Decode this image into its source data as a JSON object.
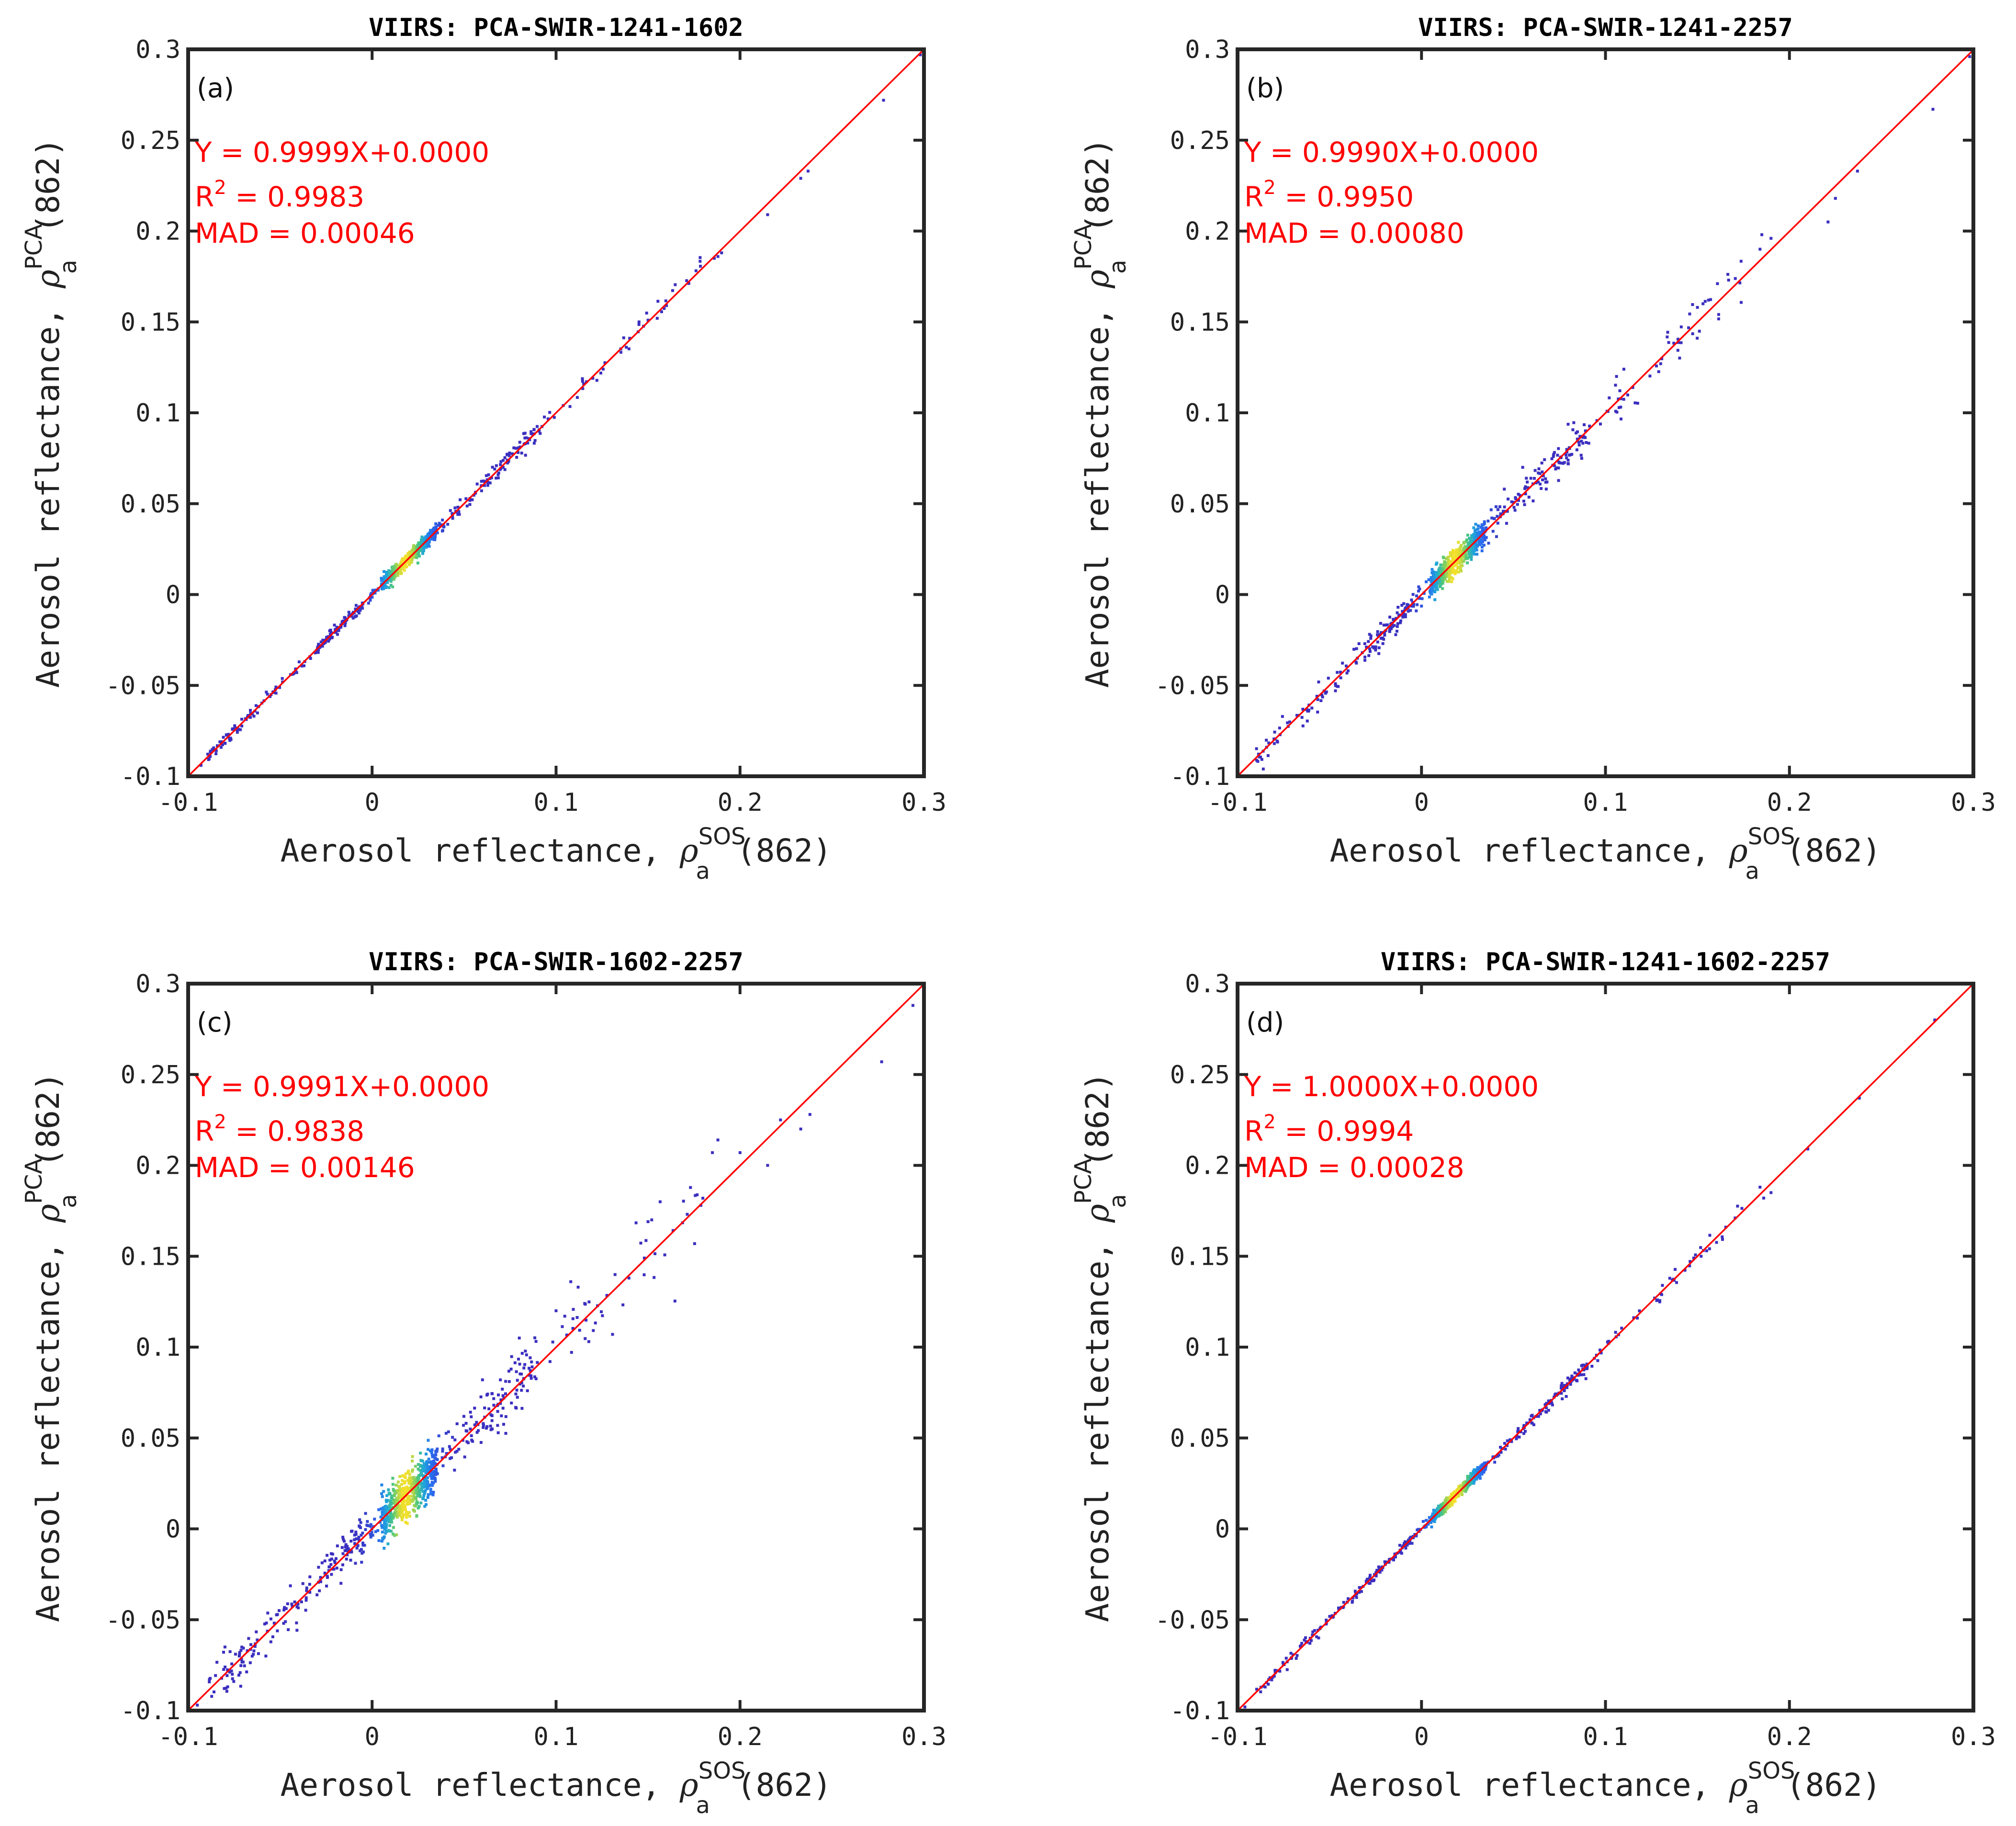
{
  "chart_data": [
    {
      "type": "scatter",
      "panel_label": "(a)",
      "title": "VIIRS: PCA-SWIR-1241-1602",
      "xlabel": "Aerosol reflectance, ",
      "xlabel_symbol": "ρ",
      "xlabel_sub": "a",
      "xlabel_sup": "SOS",
      "xlabel_suffix": "(862)",
      "ylabel": "Aerosol reflectance, ",
      "ylabel_symbol": "ρ",
      "ylabel_sub": "a",
      "ylabel_sup": "PCA",
      "ylabel_suffix": "(862)",
      "xlim": [
        -0.1,
        0.3
      ],
      "ylim": [
        -0.1,
        0.3
      ],
      "xticks": [
        -0.1,
        0,
        0.1,
        0.2,
        0.3
      ],
      "xtick_labels": [
        "-0.1",
        "0",
        "0.1",
        "0.2",
        "0.3"
      ],
      "yticks": [
        -0.1,
        -0.05,
        0,
        0.05,
        0.1,
        0.15,
        0.2,
        0.25,
        0.3
      ],
      "ytick_labels": [
        "-0.1",
        "-0.05",
        "0",
        "0.05",
        "0.1",
        "0.15",
        "0.2",
        "0.25",
        "0.3"
      ],
      "fit": {
        "slope": 0.9999,
        "intercept": 0.0
      },
      "stats": {
        "equation": "Y = 0.9999X+0.0000",
        "r2_label": "R",
        "r2_sup": "2",
        "r2_value": " = 0.9983",
        "mad": "MAD = 0.00046"
      },
      "scatter": {
        "spread": 0.0018,
        "outliers": [
          [
            0.278,
            0.272
          ],
          [
            0.237,
            0.233
          ],
          [
            0.233,
            0.229
          ],
          [
            0.215,
            0.209
          ],
          [
            0.19,
            0.188
          ],
          [
            0.188,
            0.186
          ],
          [
            0.186,
            0.185
          ],
          [
            0.16,
            0.159
          ],
          [
            0.155,
            0.152
          ],
          [
            0.15,
            0.151
          ],
          [
            0.14,
            0.141
          ],
          [
            0.12,
            0.119
          ],
          [
            0.115,
            0.116
          ],
          [
            -0.077,
            -0.079
          ],
          [
            -0.082,
            -0.081
          ],
          [
            -0.088,
            -0.089
          ],
          [
            -0.093,
            -0.094
          ],
          [
            0.298,
            0.297
          ]
        ]
      }
    },
    {
      "type": "scatter",
      "panel_label": "(b)",
      "title": "VIIRS: PCA-SWIR-1241-2257",
      "xlabel": "Aerosol reflectance, ",
      "xlabel_symbol": "ρ",
      "xlabel_sub": "a",
      "xlabel_sup": "SOS",
      "xlabel_suffix": "(862)",
      "ylabel": "Aerosol reflectance, ",
      "ylabel_symbol": "ρ",
      "ylabel_sub": "a",
      "ylabel_sup": "PCA",
      "ylabel_suffix": "(862)",
      "xlim": [
        -0.1,
        0.3
      ],
      "ylim": [
        -0.1,
        0.3
      ],
      "xticks": [
        -0.1,
        0,
        0.1,
        0.2,
        0.3
      ],
      "xtick_labels": [
        "-0.1",
        "0",
        "0.1",
        "0.2",
        "0.3"
      ],
      "yticks": [
        -0.1,
        -0.05,
        0,
        0.05,
        0.1,
        0.15,
        0.2,
        0.25,
        0.3
      ],
      "ytick_labels": [
        "-0.1",
        "-0.05",
        "0",
        "0.05",
        "0.1",
        "0.15",
        "0.2",
        "0.25",
        "0.3"
      ],
      "fit": {
        "slope": 0.999,
        "intercept": 0.0
      },
      "stats": {
        "equation": "Y = 0.9990X+0.0000",
        "r2_label": "R",
        "r2_sup": "2",
        "r2_value": " = 0.9950",
        "mad": "MAD = 0.00080"
      },
      "scatter": {
        "spread": 0.0035,
        "outliers": [
          [
            0.278,
            0.267
          ],
          [
            0.237,
            0.233
          ],
          [
            0.225,
            0.218
          ],
          [
            0.221,
            0.205
          ],
          [
            0.19,
            0.196
          ],
          [
            0.185,
            0.198
          ],
          [
            0.184,
            0.19
          ],
          [
            0.156,
            0.162
          ],
          [
            0.153,
            0.16
          ],
          [
            0.15,
            0.158
          ],
          [
            0.13,
            0.127
          ],
          [
            0.11,
            0.124
          ],
          [
            0.106,
            0.12
          ],
          [
            0.055,
            0.07
          ],
          [
            0.045,
            0.058
          ],
          [
            -0.08,
            -0.082
          ],
          [
            -0.086,
            -0.096
          ],
          [
            0.298,
            0.296
          ]
        ]
      }
    },
    {
      "type": "scatter",
      "panel_label": "(c)",
      "title": "VIIRS: PCA-SWIR-1602-2257",
      "xlabel": "Aerosol reflectance, ",
      "xlabel_symbol": "ρ",
      "xlabel_sub": "a",
      "xlabel_sup": "SOS",
      "xlabel_suffix": "(862)",
      "ylabel": "Aerosol reflectance, ",
      "ylabel_symbol": "ρ",
      "ylabel_sub": "a",
      "ylabel_sup": "PCA",
      "ylabel_suffix": "(862)",
      "xlim": [
        -0.1,
        0.3
      ],
      "ylim": [
        -0.1,
        0.3
      ],
      "xticks": [
        -0.1,
        0,
        0.1,
        0.2,
        0.3
      ],
      "xtick_labels": [
        "-0.1",
        "0",
        "0.1",
        "0.2",
        "0.3"
      ],
      "yticks": [
        -0.1,
        -0.05,
        0,
        0.05,
        0.1,
        0.15,
        0.2,
        0.25,
        0.3
      ],
      "ytick_labels": [
        "-0.1",
        "-0.05",
        "0",
        "0.05",
        "0.1",
        "0.15",
        "0.2",
        "0.25",
        "0.3"
      ],
      "fit": {
        "slope": 0.9991,
        "intercept": 0.0
      },
      "stats": {
        "equation": "Y = 0.9991X+0.0000",
        "r2_label": "R",
        "r2_sup": "2",
        "r2_value": " = 0.9838",
        "mad": "MAD = 0.00146"
      },
      "scatter": {
        "spread": 0.0065,
        "outliers": [
          [
            0.294,
            0.288
          ],
          [
            0.277,
            0.257
          ],
          [
            0.238,
            0.228
          ],
          [
            0.233,
            0.22
          ],
          [
            0.222,
            0.225
          ],
          [
            0.215,
            0.2
          ],
          [
            0.2,
            0.207
          ],
          [
            0.188,
            0.214
          ],
          [
            0.185,
            0.207
          ],
          [
            0.152,
            0.17
          ],
          [
            0.15,
            0.169
          ],
          [
            0.148,
            0.149
          ],
          [
            0.112,
            0.133
          ],
          [
            0.108,
            0.136
          ],
          [
            0.1,
            0.12
          ],
          [
            0.08,
            0.105
          ],
          [
            0.06,
            0.082
          ],
          [
            -0.08,
            -0.065
          ],
          [
            -0.076,
            -0.08
          ],
          [
            -0.072,
            -0.068
          ],
          [
            -0.095,
            -0.097
          ]
        ]
      }
    },
    {
      "type": "scatter",
      "panel_label": "(d)",
      "title": "VIIRS: PCA-SWIR-1241-1602-2257",
      "xlabel": "Aerosol reflectance, ",
      "xlabel_symbol": "ρ",
      "xlabel_sub": "a",
      "xlabel_sup": "SOS",
      "xlabel_suffix": "(862)",
      "ylabel": "Aerosol reflectance, ",
      "ylabel_symbol": "ρ",
      "ylabel_sub": "a",
      "ylabel_sup": "PCA",
      "ylabel_suffix": "(862)",
      "xlim": [
        -0.1,
        0.3
      ],
      "ylim": [
        -0.1,
        0.3
      ],
      "xticks": [
        -0.1,
        0,
        0.1,
        0.2,
        0.3
      ],
      "xtick_labels": [
        "-0.1",
        "0",
        "0.1",
        "0.2",
        "0.3"
      ],
      "yticks": [
        -0.1,
        -0.05,
        0,
        0.05,
        0.1,
        0.15,
        0.2,
        0.25,
        0.3
      ],
      "ytick_labels": [
        "-0.1",
        "-0.05",
        "0",
        "0.05",
        "0.1",
        "0.15",
        "0.2",
        "0.25",
        "0.3"
      ],
      "fit": {
        "slope": 1.0,
        "intercept": 0.0
      },
      "stats": {
        "equation": "Y = 1.0000X+0.0000",
        "r2_label": "R",
        "r2_sup": "2",
        "r2_value": " = 0.9994",
        "mad": "MAD = 0.00028"
      },
      "scatter": {
        "spread": 0.0013,
        "outliers": [
          [
            0.279,
            0.28
          ],
          [
            0.238,
            0.237
          ],
          [
            0.21,
            0.209
          ],
          [
            0.19,
            0.185
          ],
          [
            0.186,
            0.182
          ],
          [
            0.184,
            0.188
          ],
          [
            0.155,
            0.153
          ],
          [
            0.152,
            0.15
          ],
          [
            0.148,
            0.149
          ],
          [
            -0.08,
            -0.081
          ],
          [
            -0.085,
            -0.087
          ],
          [
            -0.096,
            -0.098
          ]
        ]
      }
    }
  ],
  "colors": {
    "fit_line": "#ff0000",
    "stat_text": "#ff0000",
    "frame": "#262626",
    "density_low": "#3b2fbf",
    "density_mid": "#1fa7d9",
    "density_high": "#f4e02a"
  }
}
